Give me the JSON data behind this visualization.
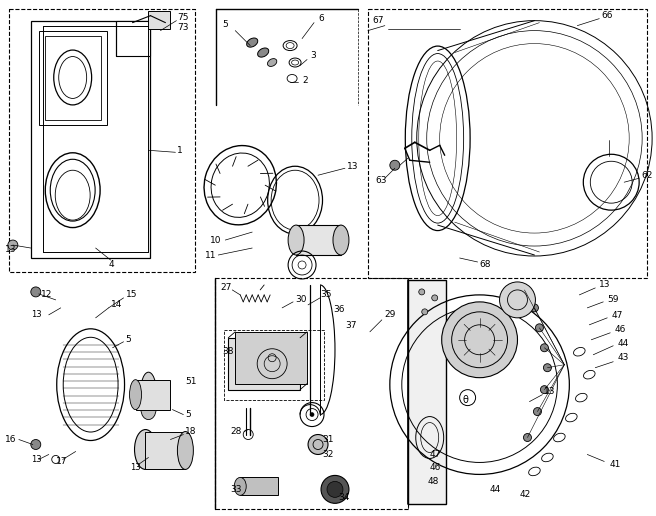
{
  "bg_color": "#ffffff",
  "fig_width": 6.56,
  "fig_height": 5.16,
  "dpi": 100
}
